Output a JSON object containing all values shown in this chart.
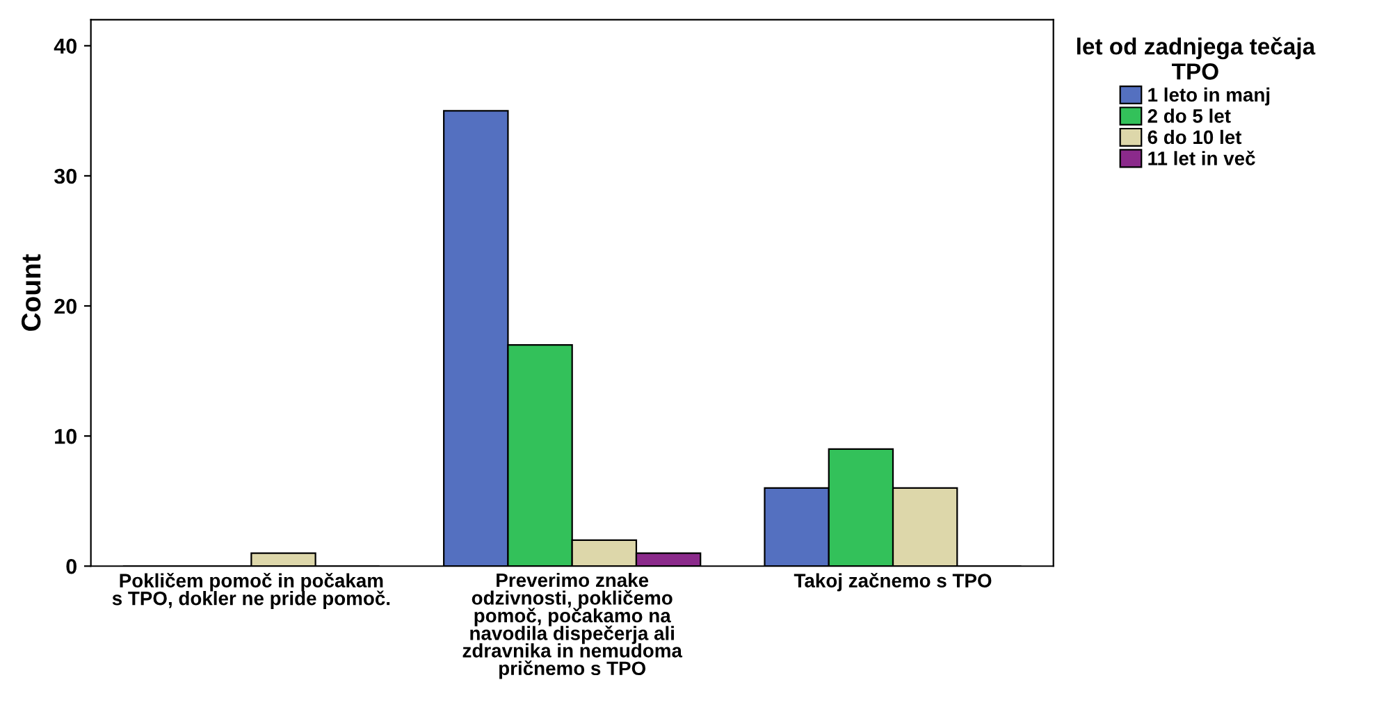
{
  "chart_data": {
    "type": "bar",
    "ylabel": "Count",
    "legend_title": "let od zadnjega tečaja\nTPO",
    "categories": [
      "Pokličem pomoč in počakam\ns TPO, dokler ne pride pomoč.",
      "Preverimo znake\nodzivnosti, pokličemo\npomoč, počakamo na\nnavodila dispečerja ali\nzdravnika in nemudoma\npričnemo s TPO",
      "Takoj začnemo s TPO"
    ],
    "series": [
      {
        "name": "1 leto in manj",
        "color": "#5470c0",
        "values": [
          0,
          35,
          6
        ]
      },
      {
        "name": "2 do 5 let",
        "color": "#33c15a",
        "values": [
          0,
          17,
          9
        ]
      },
      {
        "name": "6 do 10 let",
        "color": "#ddd7aa",
        "values": [
          1,
          2,
          6
        ]
      },
      {
        "name": "11 let in več",
        "color": "#8b2a8b",
        "values": [
          0,
          1,
          0
        ]
      }
    ],
    "ylim": [
      0,
      42
    ],
    "yticks": [
      0,
      10,
      20,
      30,
      40
    ],
    "grid": false,
    "legend": "right"
  }
}
